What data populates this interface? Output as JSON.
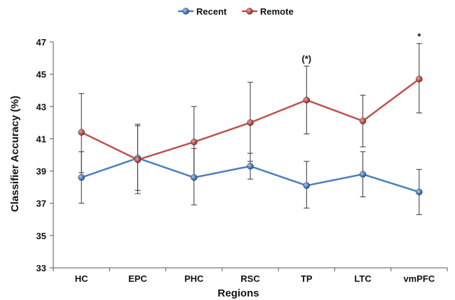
{
  "chart_data": {
    "type": "line",
    "categories": [
      "HC",
      "EPC",
      "PHC",
      "RSC",
      "TP",
      "LTC",
      "vmPFC"
    ],
    "series": [
      {
        "name": "Recent",
        "color": "#4a7ec0",
        "values": [
          38.6,
          39.8,
          38.6,
          39.3,
          38.1,
          38.8,
          37.7
        ],
        "error_high": [
          40.2,
          41.8,
          40.4,
          40.1,
          39.6,
          40.2,
          39.1
        ],
        "error_low": [
          37.0,
          37.8,
          36.9,
          38.5,
          36.7,
          37.4,
          36.3
        ]
      },
      {
        "name": "Remote",
        "color": "#c0504d",
        "values": [
          41.4,
          39.7,
          40.8,
          42.0,
          43.4,
          42.1,
          44.7
        ],
        "error_high": [
          43.8,
          41.9,
          43.0,
          44.5,
          45.5,
          43.7,
          46.9
        ],
        "error_low": [
          38.9,
          37.6,
          38.7,
          39.6,
          41.3,
          40.5,
          42.6
        ]
      }
    ],
    "annotations": [
      {
        "category": "TP",
        "text": "(*)"
      },
      {
        "category": "vmPFC",
        "text": "*"
      }
    ],
    "xlabel": "Regions",
    "ylabel": "Classifier Accuracy (%)",
    "ylim": [
      33,
      47
    ],
    "yticks": [
      33,
      35,
      37,
      39,
      41,
      43,
      45,
      47
    ],
    "grid": false,
    "legend": "top-center"
  }
}
